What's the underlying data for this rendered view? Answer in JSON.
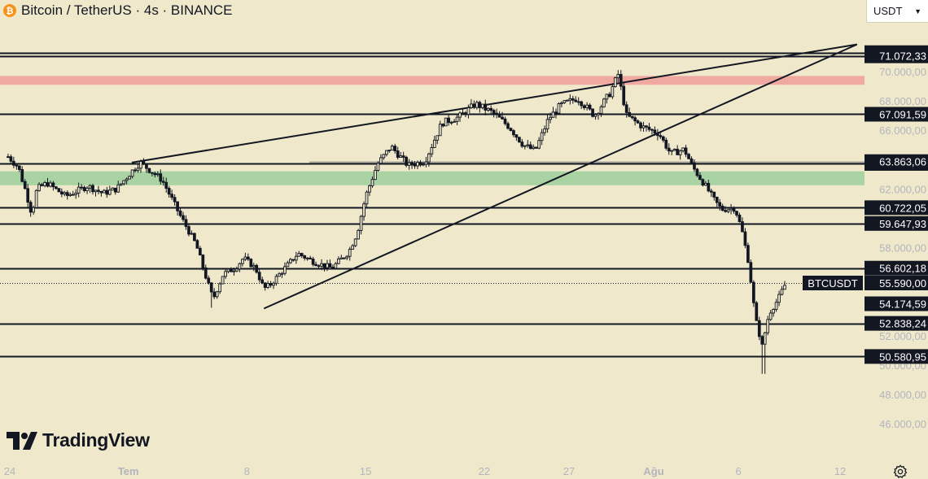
{
  "header": {
    "title": "Bitcoin / TetherUS · 4s · BINANCE",
    "coin_symbol": "₿"
  },
  "currency_selector": {
    "value": "USDT"
  },
  "branding": {
    "logo_text": "TradingView"
  },
  "colors": {
    "background": "#efe8cb",
    "candle": "#131722",
    "red_zone": "#f0a9a0",
    "green_zone": "#aad3a4",
    "label_bg": "#131722",
    "label_text": "#ffffff",
    "axis_text": "#b2b5be",
    "gray_line": "#aaa69a"
  },
  "chart_data": {
    "type": "candlestick",
    "symbol": "BTCUSDT",
    "exchange": "BINANCE",
    "timeframe": "4s",
    "ylim": [
      45000,
      72500
    ],
    "y_ticks": [
      "70.000,00",
      "68.000,00",
      "66.000,00",
      "62.000,00",
      "58.000,00",
      "52.000,00",
      "50.000,00",
      "48.000,00",
      "46.000,00"
    ],
    "y_tick_values": [
      70000,
      68000,
      66000,
      62000,
      58000,
      52000,
      50000,
      48000,
      46000
    ],
    "x_ticks": [
      "24",
      "Tem",
      "8",
      "15",
      "22",
      "27",
      "Ağu",
      "6",
      "12"
    ],
    "x_tick_days": [
      -7,
      0,
      7,
      14,
      21,
      26,
      31,
      36,
      42
    ],
    "x_range_days": [
      -7.1,
      43.6
    ],
    "horizontal_levels": [
      {
        "label": "71.289,16",
        "value": 71289.16
      },
      {
        "label": "71.072,33",
        "value": 71072.33
      },
      {
        "label": "67.091,59",
        "value": 67091.59
      },
      {
        "label": "63.739,35",
        "value": 63739.35
      },
      {
        "label": "60.722,05",
        "value": 60722.05
      },
      {
        "label": "59.647,93",
        "value": 59647.93
      },
      {
        "label": "56.602,18",
        "value": 56602.18
      },
      {
        "label": "52.838,24",
        "value": 52838.24
      },
      {
        "label": "50.580,95",
        "value": 50580.95
      }
    ],
    "gray_level": {
      "label": "63.863,06",
      "value": 63863.06
    },
    "extra_levels": [
      {
        "label": "54.174,59",
        "value": 54174.59
      }
    ],
    "zones": [
      {
        "name": "resistance",
        "color": "#f0a9a0",
        "from": 69100,
        "to": 69700
      },
      {
        "name": "support",
        "color": "#aad3a4",
        "from": 62250,
        "to": 63200
      }
    ],
    "trendlines": [
      {
        "from": {
          "day": 0.2,
          "price": 63800
        },
        "to": {
          "day": 43.0,
          "price": 71850
        }
      },
      {
        "from": {
          "day": 8.0,
          "price": 53850
        },
        "to": {
          "day": 43.0,
          "price": 71850
        }
      }
    ],
    "current_price": {
      "symbol": "BTCUSDT",
      "label": "55.590,00",
      "value": 55590
    },
    "path": [
      [
        -7.1,
        64200
      ],
      [
        -6.5,
        63500
      ],
      [
        -6.1,
        62000
      ],
      [
        -5.7,
        60300
      ],
      [
        -5.4,
        62000
      ],
      [
        -4.8,
        62400
      ],
      [
        -3.7,
        61500
      ],
      [
        -2.4,
        62200
      ],
      [
        -1.5,
        61700
      ],
      [
        -0.7,
        62000
      ],
      [
        0.2,
        63200
      ],
      [
        0.7,
        63800
      ],
      [
        2.0,
        62600
      ],
      [
        3.0,
        60300
      ],
      [
        4.0,
        58200
      ],
      [
        4.6,
        55900
      ],
      [
        5.0,
        54500
      ],
      [
        5.6,
        56200
      ],
      [
        6.3,
        56600
      ],
      [
        6.8,
        57300
      ],
      [
        7.5,
        56600
      ],
      [
        8.0,
        55200
      ],
      [
        8.4,
        55500
      ],
      [
        9.0,
        56300
      ],
      [
        10.0,
        57600
      ],
      [
        11.0,
        57000
      ],
      [
        12.0,
        56600
      ],
      [
        13.0,
        57700
      ],
      [
        13.5,
        59000
      ],
      [
        14.0,
        61500
      ],
      [
        14.7,
        63700
      ],
      [
        15.5,
        64900
      ],
      [
        16.5,
        63600
      ],
      [
        17.5,
        63900
      ],
      [
        18.5,
        66500
      ],
      [
        19.5,
        66900
      ],
      [
        20.5,
        67800
      ],
      [
        21.5,
        67200
      ],
      [
        22.5,
        66200
      ],
      [
        23.3,
        65000
      ],
      [
        24.0,
        64600
      ],
      [
        24.8,
        66800
      ],
      [
        25.5,
        67700
      ],
      [
        26.5,
        68200
      ],
      [
        27.5,
        67000
      ],
      [
        28.4,
        68500
      ],
      [
        28.9,
        69800
      ],
      [
        29.4,
        67000
      ],
      [
        30.4,
        66200
      ],
      [
        31.3,
        65800
      ],
      [
        32.0,
        64400
      ],
      [
        32.8,
        64700
      ],
      [
        33.3,
        63500
      ],
      [
        34.0,
        62300
      ],
      [
        34.6,
        61200
      ],
      [
        35.0,
        60600
      ],
      [
        35.8,
        60700
      ],
      [
        36.2,
        59200
      ],
      [
        36.6,
        57000
      ],
      [
        37.0,
        53200
      ],
      [
        37.4,
        51300
      ],
      [
        37.8,
        53500
      ],
      [
        38.3,
        54400
      ],
      [
        38.8,
        55590
      ]
    ]
  }
}
